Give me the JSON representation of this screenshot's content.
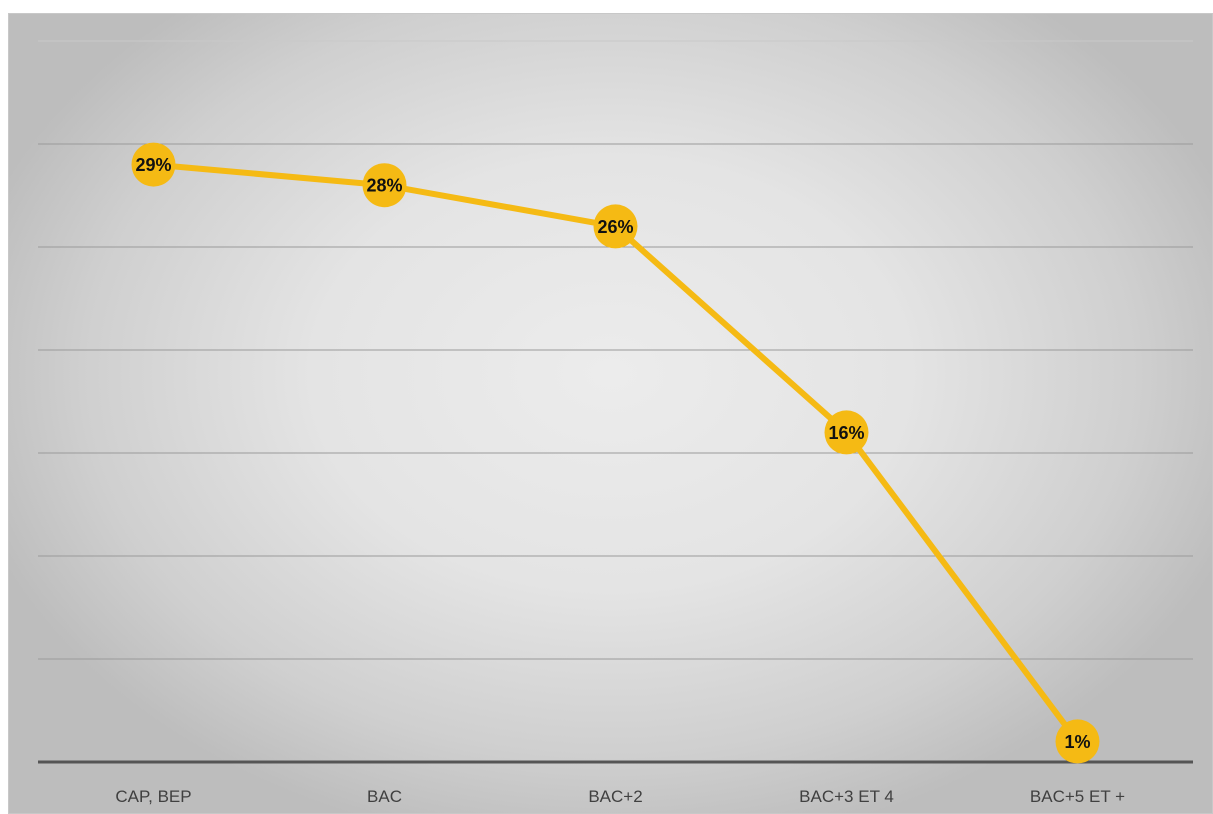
{
  "chart_data": {
    "type": "line",
    "title": "",
    "xlabel": "",
    "ylabel": "",
    "categories": [
      "CAP, BEP",
      "BAC",
      "BAC+2",
      "BAC+3 ET 4",
      "BAC+5 ET +"
    ],
    "series": [
      {
        "values": [
          29,
          28,
          26,
          16,
          1
        ],
        "data_labels": [
          "29%",
          "28%",
          "26%",
          "16%",
          "1%"
        ],
        "color": "#F5BA14"
      }
    ],
    "y_axis_visible": false,
    "grid": true,
    "legend": "none"
  },
  "colors": {
    "series": "#F5BA14",
    "gridline": "#9a9a9a",
    "axis": "#555555",
    "tick_text": "#404040",
    "label_text": "#111111"
  }
}
